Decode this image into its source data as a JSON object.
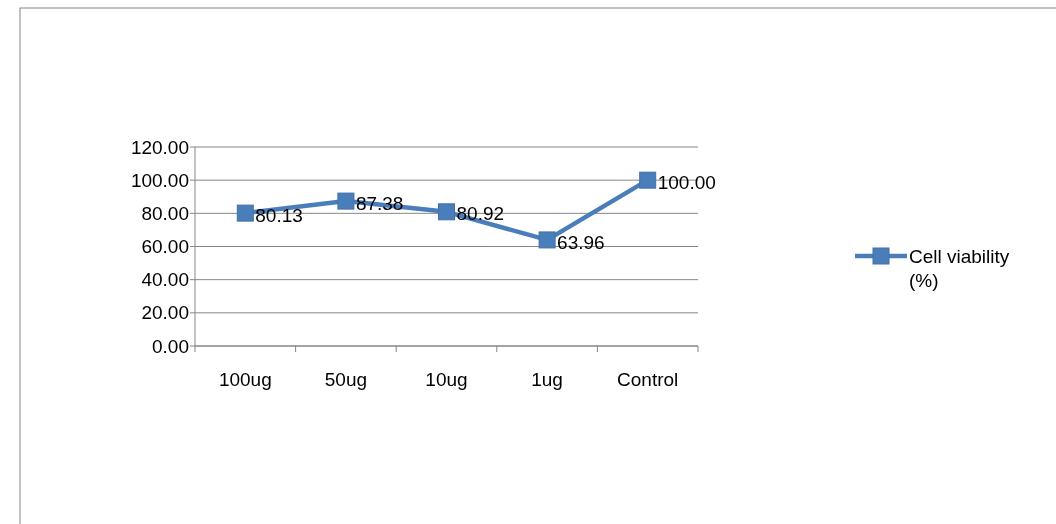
{
  "chart_data": {
    "type": "line",
    "categories": [
      "100ug",
      "50ug",
      "10ug",
      "1ug",
      "Control"
    ],
    "series": [
      {
        "name": "Cell viability (%)",
        "color": "#4a7ebb",
        "values": [
          80.13,
          87.38,
          80.92,
          63.96,
          100
        ],
        "value_labels": [
          "80.13",
          "87.38",
          "80.92",
          "63.96",
          "100.00"
        ]
      }
    ],
    "ylim": [
      0,
      120
    ],
    "yticks": [
      {
        "value": 0,
        "label": "0.00"
      },
      {
        "value": 20,
        "label": "20.00"
      },
      {
        "value": 40,
        "label": "40.00"
      },
      {
        "value": 60,
        "label": "60.00"
      },
      {
        "value": 80,
        "label": "80.00"
      },
      {
        "value": 100,
        "label": "100.00"
      },
      {
        "value": 120,
        "label": "120.00"
      }
    ],
    "grid": "y",
    "legend": "right",
    "marker": "square",
    "line_style": "solid"
  }
}
